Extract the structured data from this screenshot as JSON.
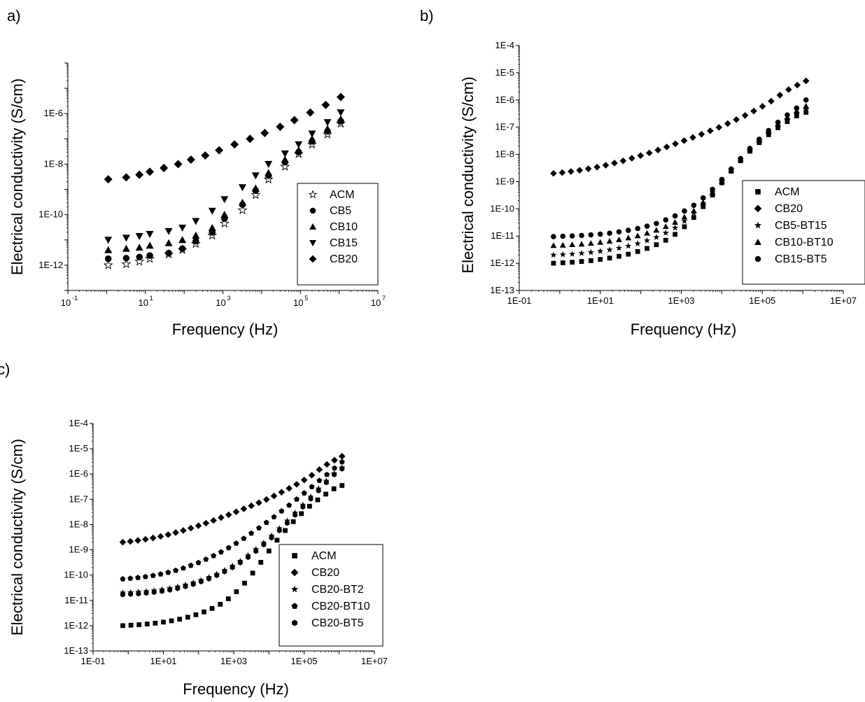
{
  "chart_data": [
    {
      "panel": "a)",
      "type": "scatter",
      "title": "",
      "xlabel": "Frequency (Hz)",
      "ylabel": "Electrical conductivity (S/cm)",
      "x_scale": "log",
      "y_scale": "log",
      "xlim": [
        0.1,
        10000000
      ],
      "ylim": [
        1e-13,
        0.0001
      ],
      "x_ticks": [
        0.1,
        10,
        1000,
        100000,
        10000000
      ],
      "x_tick_labels": [
        {
          "base": "10",
          "exp": "-1"
        },
        {
          "base": "10",
          "exp": "1"
        },
        {
          "base": "10",
          "exp": "3"
        },
        {
          "base": "10",
          "exp": "5"
        },
        {
          "base": "10",
          "exp": "7"
        }
      ],
      "y_ticks": [
        1e-12,
        1e-10,
        1e-08,
        1e-06
      ],
      "y_tick_labels": [
        "1E-12",
        "1E-10",
        "1E-8",
        "1E-6"
      ],
      "legend_position": "bottom-right",
      "series": [
        {
          "name": "ACM",
          "marker": "star-open",
          "x": [
            1.1,
            3.2,
            7,
            13,
            40,
            90,
            200,
            530,
            1100,
            3200,
            7000,
            15000,
            40000,
            90000,
            200000,
            500000,
            1100000
          ],
          "y": [
            1e-12,
            1.1e-12,
            1.4e-12,
            1.8e-12,
            2.7e-12,
            4e-12,
            7e-12,
            1.5e-11,
            4.5e-11,
            1.5e-10,
            6e-10,
            2.5e-09,
            8e-09,
            2.5e-08,
            6e-08,
            1.5e-07,
            4e-07
          ]
        },
        {
          "name": "CB5",
          "marker": "circle",
          "x": [
            1.1,
            3.2,
            7,
            13,
            40,
            90,
            200,
            530,
            1100,
            3200,
            7000,
            15000,
            40000,
            90000,
            200000,
            500000,
            1100000
          ],
          "y": [
            1.8e-12,
            1.9e-12,
            2.1e-12,
            2.4e-12,
            3e-12,
            4.5e-12,
            9e-12,
            2e-11,
            7e-11,
            2.5e-10,
            9e-10,
            3.5e-09,
            1.2e-08,
            3e-08,
            8e-08,
            2e-07,
            5e-07
          ]
        },
        {
          "name": "CB10",
          "marker": "triangle-up",
          "x": [
            1.1,
            3.2,
            7,
            13,
            40,
            90,
            200,
            530,
            1100,
            3200,
            7000,
            15000,
            40000,
            90000,
            200000,
            500000,
            1100000
          ],
          "y": [
            4e-12,
            4.5e-12,
            5e-12,
            6e-12,
            7.5e-12,
            1e-11,
            1.5e-11,
            3e-11,
            1e-10,
            3e-10,
            1.1e-09,
            4.5e-09,
            1.5e-08,
            3.5e-08,
            1e-07,
            2.5e-07,
            6e-07
          ]
        },
        {
          "name": "CB15",
          "marker": "triangle-down",
          "x": [
            1.1,
            3.2,
            7,
            13,
            40,
            90,
            200,
            530,
            1100,
            3200,
            7000,
            15000,
            40000,
            90000,
            200000,
            500000,
            1100000
          ],
          "y": [
            1e-11,
            1.2e-11,
            1.4e-11,
            1.7e-11,
            2.2e-11,
            3e-11,
            5.5e-11,
            1.4e-10,
            4e-10,
            1.2e-09,
            3.5e-09,
            1e-08,
            2.6e-08,
            6e-08,
            1.6e-07,
            4.5e-07,
            1.1e-06
          ]
        },
        {
          "name": "CB20",
          "marker": "diamond",
          "x": [
            1.1,
            3.2,
            7,
            13,
            30,
            70,
            150,
            350,
            800,
            2000,
            5000,
            12000,
            30000,
            70000,
            180000,
            450000,
            1100000
          ],
          "y": [
            2.5e-09,
            3e-09,
            3.8e-09,
            5e-09,
            7e-09,
            1e-08,
            1.5e-08,
            2.2e-08,
            3.5e-08,
            6e-08,
            1e-07,
            1.7e-07,
            3e-07,
            5.5e-07,
            1.1e-06,
            2.2e-06,
            4.5e-06
          ]
        }
      ]
    },
    {
      "panel": "b)",
      "type": "scatter",
      "title": "",
      "xlabel": "Frequency (Hz)",
      "ylabel": "Electrical conductivity (S/cm)",
      "x_scale": "log",
      "y_scale": "log",
      "xlim": [
        0.1,
        10000000
      ],
      "ylim": [
        1e-13,
        0.0001
      ],
      "x_ticks": [
        0.1,
        10,
        1000,
        100000,
        10000000
      ],
      "x_tick_labels": [
        "1E-01",
        "1E+01",
        "1E+03",
        "1E+05",
        "1E+07"
      ],
      "y_ticks": [
        1e-13,
        1e-12,
        1e-11,
        1e-10,
        1e-09,
        1e-08,
        1e-07,
        1e-06,
        1e-05,
        0.0001
      ],
      "y_tick_labels": [
        "1E-13",
        "1E-12",
        "1E-11",
        "1E-10",
        "1E-9",
        "1E-8",
        "1E-7",
        "1E-6",
        "1E-5",
        "1E-4"
      ],
      "legend_position": "bottom-right",
      "series": [
        {
          "name": "ACM",
          "marker": "square",
          "x_start": 0.7,
          "x_end": 1200000,
          "y": [
            1e-12,
            1.04e-12,
            1.09e-12,
            1.16e-12,
            1.25e-12,
            1.38e-12,
            1.55e-12,
            1.8e-12,
            2.15e-12,
            2.7e-12,
            3.5e-12,
            4.8e-12,
            7e-12,
            1.15e-11,
            2.2e-11,
            4.8e-11,
            1.2e-10,
            3.2e-10,
            9e-10,
            2.4e-09,
            5.8e-09,
            1.3e-08,
            2.7e-08,
            5.3e-08,
            9.5e-08,
            1.6e-07,
            2.6e-07,
            3.5e-07
          ]
        },
        {
          "name": "CB20",
          "marker": "diamond",
          "x_start": 0.7,
          "x_end": 1200000,
          "y": [
            2e-09,
            2.15e-09,
            2.35e-09,
            2.6e-09,
            2.95e-09,
            3.4e-09,
            4e-09,
            4.8e-09,
            5.8e-09,
            7.2e-09,
            9e-09,
            1.13e-08,
            1.45e-08,
            1.88e-08,
            2.45e-08,
            3.2e-08,
            4.2e-08,
            5.5e-08,
            7.3e-08,
            9.8e-08,
            1.35e-07,
            1.9e-07,
            2.7e-07,
            3.9e-07,
            5.8e-07,
            9e-07,
            1.5e-06,
            2.4e-06,
            3.5e-06,
            5e-06
          ]
        },
        {
          "name": "CB5-BT15",
          "marker": "star",
          "x_start": 0.7,
          "x_end": 1200000,
          "y": [
            2e-12,
            2.08e-12,
            2.18e-12,
            2.32e-12,
            2.5e-12,
            2.75e-12,
            3.1e-12,
            3.6e-12,
            4.3e-12,
            5.3e-12,
            6.8e-12,
            9e-12,
            1.3e-11,
            2e-11,
            3.5e-11,
            7e-11,
            1.6e-10,
            4e-10,
            1.05e-09,
            2.7e-09,
            6.5e-09,
            1.45e-08,
            3e-08,
            6e-08,
            1.1e-07,
            1.9e-07,
            3.2e-07,
            4.5e-07
          ]
        },
        {
          "name": "CB10-BT10",
          "marker": "triangle-up",
          "x_start": 0.7,
          "x_end": 1200000,
          "y": [
            4.5e-12,
            4.65e-12,
            4.85e-12,
            5.1e-12,
            5.45e-12,
            5.9e-12,
            6.5e-12,
            7.4e-12,
            8.6e-12,
            1.03e-11,
            1.28e-11,
            1.65e-11,
            2.25e-11,
            3.2e-11,
            5e-11,
            8.5e-11,
            1.7e-10,
            4e-10,
            1.05e-09,
            2.7e-09,
            6.8e-09,
            1.6e-08,
            3.4e-08,
            7e-08,
            1.3e-07,
            2.3e-07,
            3.9e-07,
            6e-07
          ]
        },
        {
          "name": "CB15-BT5",
          "marker": "circle",
          "x_start": 0.7,
          "x_end": 1200000,
          "y": [
            9.5e-12,
            9.8e-12,
            1.01e-11,
            1.05e-11,
            1.1e-11,
            1.17e-11,
            1.27e-11,
            1.42e-11,
            1.62e-11,
            1.9e-11,
            2.3e-11,
            2.9e-11,
            3.9e-11,
            5.5e-11,
            8.3e-11,
            1.35e-10,
            2.5e-10,
            5.2e-10,
            1.2e-09,
            2.9e-09,
            7e-09,
            1.65e-08,
            3.6e-08,
            7.5e-08,
            1.5e-07,
            2.8e-07,
            5e-07,
            1e-06
          ]
        }
      ]
    },
    {
      "panel": "c)",
      "type": "scatter",
      "title": "",
      "xlabel": "Frequency (Hz)",
      "ylabel": "Electrical conductivity (S/cm)",
      "x_scale": "log",
      "y_scale": "log",
      "xlim": [
        0.1,
        10000000
      ],
      "ylim": [
        1e-13,
        0.0001
      ],
      "x_ticks": [
        0.1,
        10,
        1000,
        100000,
        10000000
      ],
      "x_tick_labels": [
        "1E-01",
        "1E+01",
        "1E+03",
        "1E+05",
        "1E+07"
      ],
      "y_ticks": [
        1e-13,
        1e-12,
        1e-11,
        1e-10,
        1e-09,
        1e-08,
        1e-07,
        1e-06,
        1e-05,
        0.0001
      ],
      "y_tick_labels": [
        "1E-13",
        "1E-12",
        "1E-11",
        "1E-10",
        "1E-9",
        "1E-8",
        "1E-7",
        "1E-6",
        "1E-5",
        "1E-4"
      ],
      "legend_position": "bottom-right",
      "series": [
        {
          "name": "ACM",
          "marker": "square",
          "x_start": 0.7,
          "x_end": 1200000,
          "y": [
            1e-12,
            1.04e-12,
            1.09e-12,
            1.16e-12,
            1.25e-12,
            1.38e-12,
            1.55e-12,
            1.8e-12,
            2.15e-12,
            2.7e-12,
            3.5e-12,
            4.8e-12,
            7e-12,
            1.15e-11,
            2.2e-11,
            4.8e-11,
            1.2e-10,
            3.2e-10,
            9e-10,
            2.4e-09,
            5.8e-09,
            1.3e-08,
            2.7e-08,
            5.3e-08,
            9.5e-08,
            1.6e-07,
            2.6e-07,
            3.5e-07
          ]
        },
        {
          "name": "CB20",
          "marker": "diamond",
          "x_start": 0.7,
          "x_end": 1200000,
          "y": [
            2e-09,
            2.15e-09,
            2.35e-09,
            2.6e-09,
            2.95e-09,
            3.4e-09,
            4e-09,
            4.8e-09,
            5.8e-09,
            7.2e-09,
            9e-09,
            1.13e-08,
            1.45e-08,
            1.88e-08,
            2.45e-08,
            3.2e-08,
            4.2e-08,
            5.5e-08,
            7.3e-08,
            9.8e-08,
            1.35e-07,
            1.9e-07,
            2.7e-07,
            3.9e-07,
            5.8e-07,
            9e-07,
            1.5e-06,
            2.4e-06,
            3.5e-06,
            5e-06
          ]
        },
        {
          "name": "CB20-BT2",
          "marker": "star",
          "x_start": 0.7,
          "x_end": 1200000,
          "y": [
            2e-11,
            2.07e-11,
            2.16e-11,
            2.28e-11,
            2.45e-11,
            2.68e-11,
            3e-11,
            3.45e-11,
            4.1e-11,
            5e-11,
            6.3e-11,
            8.2e-11,
            1.1e-10,
            1.55e-10,
            2.3e-10,
            3.6e-10,
            6e-10,
            1.05e-09,
            1.9e-09,
            3.6e-09,
            7e-09,
            1.4e-08,
            2.9e-08,
            6e-08,
            1.25e-07,
            2.6e-07,
            5.3e-07,
            1.05e-06,
            1.8e-06
          ]
        },
        {
          "name": "CB20-BT10",
          "marker": "pentagon",
          "x_start": 0.7,
          "x_end": 1200000,
          "y": [
            7e-11,
            7.4e-11,
            7.9e-11,
            8.6e-11,
            9.6e-11,
            1.09e-10,
            1.27e-10,
            1.52e-10,
            1.88e-10,
            2.4e-10,
            3.1e-10,
            4.2e-10,
            5.8e-10,
            8.2e-10,
            1.2e-09,
            1.8e-09,
            2.8e-09,
            4.5e-09,
            7.3e-09,
            1.2e-08,
            2e-08,
            3.4e-08,
            5.8e-08,
            1e-07,
            1.75e-07,
            3.1e-07,
            5.5e-07,
            9.5e-07,
            1.7e-06,
            3e-06
          ]
        },
        {
          "name": "CB20-BT5",
          "marker": "hexagon",
          "x_start": 0.7,
          "x_end": 1200000,
          "y": [
            1.7e-11,
            1.76e-11,
            1.84e-11,
            1.95e-11,
            2.1e-11,
            2.3e-11,
            2.58e-11,
            2.98e-11,
            3.55e-11,
            4.35e-11,
            5.5e-11,
            7.2e-11,
            9.7e-11,
            1.37e-10,
            2e-10,
            3.1e-10,
            5.1e-10,
            8.8e-10,
            1.6e-09,
            3e-09,
            5.8e-09,
            1.15e-08,
            2.4e-08,
            5e-08,
            1.05e-07,
            2.2e-07,
            4.6e-07,
            9.5e-07,
            1.6e-06
          ]
        }
      ]
    }
  ]
}
